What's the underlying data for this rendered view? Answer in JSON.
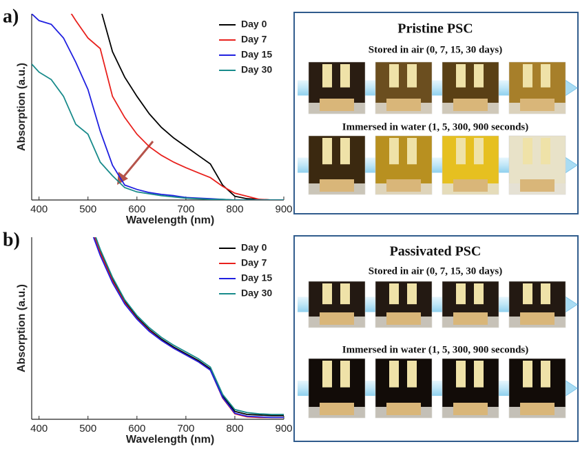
{
  "chart_data": [
    {
      "type": "line",
      "label": "a)",
      "xlabel": "Wavelength (nm)",
      "ylabel": "Absorption (a.u.)",
      "x": [
        385,
        400,
        425,
        450,
        475,
        500,
        525,
        550,
        575,
        600,
        625,
        650,
        675,
        700,
        725,
        750,
        775,
        800,
        825,
        850,
        875,
        900
      ],
      "xlim": [
        385,
        900
      ],
      "xticks": [
        400,
        500,
        600,
        700,
        800,
        900
      ],
      "ylim": [
        0,
        3
      ],
      "legend": "upper right",
      "series": [
        {
          "name": "Day 0",
          "color": "#000000",
          "values": [
            null,
            null,
            null,
            null,
            null,
            null,
            3.1,
            2.39,
            1.98,
            1.67,
            1.39,
            1.17,
            1.0,
            0.86,
            0.72,
            0.58,
            0.24,
            0.06,
            0.02,
            0.01,
            0,
            0
          ]
        },
        {
          "name": "Day 7",
          "color": "#e8201c",
          "values": [
            null,
            null,
            null,
            3.2,
            2.89,
            2.61,
            2.44,
            1.67,
            1.33,
            1.06,
            0.86,
            0.72,
            0.61,
            0.52,
            0.44,
            0.36,
            0.22,
            0.11,
            0.06,
            0.01,
            0,
            0
          ]
        },
        {
          "name": "Day 15",
          "color": "#1f1fe0",
          "values": [
            3.0,
            2.89,
            2.83,
            2.61,
            2.22,
            1.78,
            1.11,
            0.56,
            0.24,
            0.17,
            0.12,
            0.09,
            0.07,
            0.04,
            0.03,
            0.02,
            0.01,
            0,
            0,
            0,
            0,
            0
          ]
        },
        {
          "name": "Day 30",
          "color": "#178a8a",
          "values": [
            2.19,
            2.06,
            1.94,
            1.67,
            1.22,
            1.06,
            0.61,
            0.39,
            0.2,
            0.13,
            0.1,
            0.07,
            0.05,
            0.03,
            0.02,
            0.01,
            0.01,
            0,
            0,
            0,
            0,
            0
          ]
        }
      ]
    },
    {
      "type": "line",
      "label": "b)",
      "xlabel": "Wavelength (nm)",
      "ylabel": "Absorption (a.u.)",
      "x": [
        500,
        525,
        550,
        575,
        600,
        625,
        650,
        675,
        700,
        725,
        750,
        775,
        800,
        825,
        850,
        875,
        900
      ],
      "xlim": [
        385,
        900
      ],
      "xticks": [
        400,
        500,
        600,
        700,
        800,
        900
      ],
      "ylim": [
        0,
        3
      ],
      "legend": "upper right",
      "series": [
        {
          "name": "Day 0",
          "color": "#000000",
          "values": [
            3.3,
            2.76,
            2.3,
            1.94,
            1.68,
            1.48,
            1.32,
            1.19,
            1.08,
            0.97,
            0.83,
            0.38,
            0.13,
            0.08,
            0.07,
            0.06,
            0.06
          ]
        },
        {
          "name": "Day 7",
          "color": "#e8201c",
          "values": [
            3.3,
            2.74,
            2.28,
            1.92,
            1.66,
            1.46,
            1.3,
            1.17,
            1.06,
            0.95,
            0.81,
            0.35,
            0.09,
            0.04,
            0.03,
            0.03,
            0.03
          ]
        },
        {
          "name": "Day 15",
          "color": "#1f1fe0",
          "values": [
            3.25,
            2.7,
            2.25,
            1.9,
            1.65,
            1.45,
            1.3,
            1.17,
            1.06,
            0.95,
            0.81,
            0.36,
            0.1,
            0.05,
            0.04,
            0.03,
            0.03
          ]
        },
        {
          "name": "Day 30",
          "color": "#178a8a",
          "values": [
            3.35,
            2.8,
            2.34,
            1.97,
            1.71,
            1.51,
            1.35,
            1.22,
            1.11,
            1.0,
            0.86,
            0.41,
            0.16,
            0.11,
            0.09,
            0.08,
            0.08
          ]
        }
      ]
    }
  ],
  "photo_panels": [
    {
      "title": "Pristine PSC",
      "rows": [
        "Stored in air (0, 7, 15, 30 days)",
        "Immersed in water (1, 5, 300, 900 seconds)"
      ]
    },
    {
      "title": "Passivated PSC",
      "rows": [
        "Stored in air (0, 7, 15, 30 days)",
        "Immersed in water (1, 5, 300, 900 seconds)"
      ]
    }
  ]
}
